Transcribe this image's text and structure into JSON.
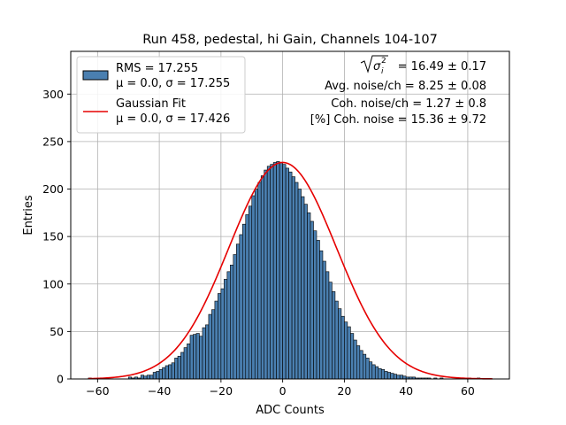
{
  "chart_data": {
    "type": "bar",
    "title": "Run 458, pedestal, hi Gain, Channels 104-107",
    "xlabel": "ADC Counts",
    "ylabel": "Entries",
    "xlim": [
      -68.7,
      73.5
    ],
    "ylim": [
      0,
      345
    ],
    "xticks": [
      -60,
      -40,
      -20,
      0,
      20,
      40,
      60
    ],
    "yticks": [
      0,
      50,
      100,
      150,
      200,
      250,
      300
    ],
    "grid": true,
    "legend_position": "top-left",
    "bin_width": 1,
    "bins_x_start": -63,
    "bins_x_end": 68,
    "counts": [
      1,
      0,
      0,
      1,
      0,
      0,
      0,
      0,
      0,
      0,
      0,
      0,
      0,
      2,
      1,
      2,
      1,
      4,
      3,
      4,
      4,
      7,
      8,
      10,
      12,
      14,
      15,
      17,
      22,
      24,
      28,
      33,
      37,
      46,
      47,
      48,
      45,
      54,
      57,
      68,
      73,
      82,
      90,
      95,
      105,
      113,
      120,
      131,
      142,
      152,
      163,
      173,
      182,
      193,
      200,
      207,
      214,
      220,
      224,
      226,
      228,
      229,
      228,
      226,
      222,
      218,
      213,
      207,
      200,
      192,
      184,
      175,
      166,
      156,
      146,
      135,
      124,
      113,
      102,
      92,
      82,
      74,
      66,
      60,
      55,
      48,
      41,
      35,
      30,
      26,
      22,
      18,
      15,
      13,
      11,
      10,
      8,
      7,
      6,
      5,
      4,
      4,
      3,
      2,
      2,
      2,
      1,
      1,
      1,
      1,
      1,
      0,
      1,
      0,
      1,
      0,
      0,
      0,
      0,
      0,
      1,
      0,
      0,
      1,
      0,
      0,
      1,
      0,
      0,
      0,
      0,
      0
    ],
    "bar_color": "#4a7fb0",
    "bar_edge_color": "#000000",
    "series": [
      {
        "name": "RMS = 17.255",
        "name_line2": "μ = 0.0, σ = 17.255",
        "type": "histogram",
        "color": "#4a7fb0"
      },
      {
        "name": "Gaussian Fit",
        "name_line2": "μ = 0.0, σ = 17.426",
        "type": "line",
        "color": "#e60000",
        "mu": 0.0,
        "sigma": 17.426,
        "amplitude": 228,
        "x_range": [
          -63,
          68
        ]
      }
    ],
    "annotations": [
      {
        "sqrt_text": "σ",
        "sqrt_sup": "2",
        "sqrt_sub": "i",
        "value_text": "= 16.49 ± 0.17"
      },
      {
        "text": "Avg. noise/ch = 8.25 ± 0.08"
      },
      {
        "text": "Coh. noise/ch = 1.27 ± 0.8"
      },
      {
        "text": "[%] Coh. noise = 15.36 ± 9.72"
      }
    ]
  }
}
